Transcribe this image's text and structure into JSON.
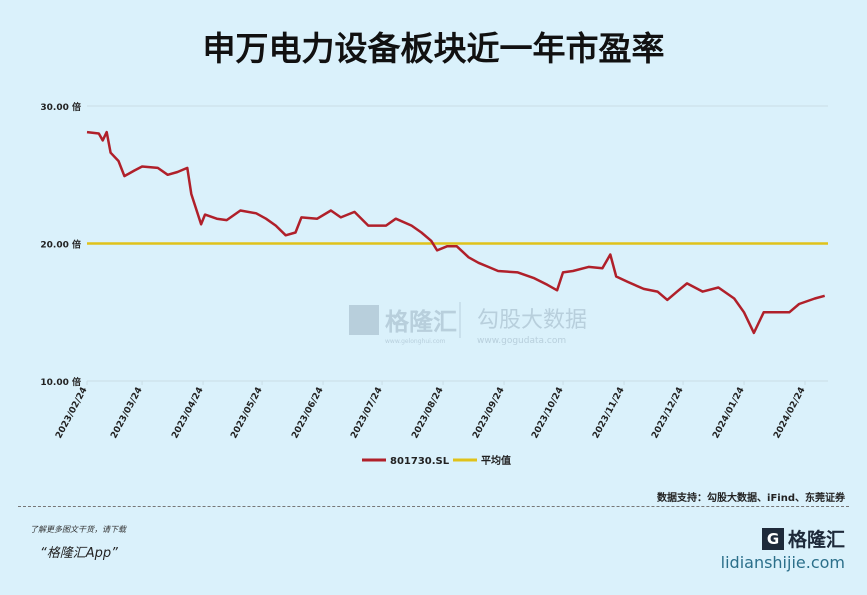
{
  "chart_data": {
    "type": "line",
    "title": "申万电力设备板块近一年市盈率",
    "ylim": [
      10,
      30
    ],
    "yticks": [
      {
        "value": 30,
        "label": "30.00 倍"
      },
      {
        "value": 20,
        "label": "20.00 倍"
      },
      {
        "value": 10,
        "label": "10.00 倍"
      }
    ],
    "xticks": [
      "2023/02/24",
      "2023/03/24",
      "2023/04/24",
      "2023/05/24",
      "2023/06/24",
      "2023/07/24",
      "2023/08/24",
      "2023/09/24",
      "2023/10/24",
      "2023/11/24",
      "2023/12/24",
      "2024/01/24",
      "2024/02/24"
    ],
    "grid": true,
    "legend_position": "bottom",
    "series": [
      {
        "name": "801730.SL",
        "color": "#b0202a",
        "x": [
          "2023-02-24",
          "2023-03-02",
          "2023-03-04",
          "2023-03-06",
          "2023-03-08",
          "2023-03-12",
          "2023-03-15",
          "2023-03-20",
          "2023-03-24",
          "2023-04-01",
          "2023-04-06",
          "2023-04-11",
          "2023-04-16",
          "2023-04-18",
          "2023-04-23",
          "2023-04-25",
          "2023-05-01",
          "2023-05-06",
          "2023-05-13",
          "2023-05-21",
          "2023-05-26",
          "2023-05-31",
          "2023-06-05",
          "2023-06-10",
          "2023-06-13",
          "2023-06-21",
          "2023-06-28",
          "2023-07-03",
          "2023-07-10",
          "2023-07-17",
          "2023-07-26",
          "2023-07-31",
          "2023-08-08",
          "2023-08-13",
          "2023-08-18",
          "2023-08-21",
          "2023-08-26",
          "2023-08-31",
          "2023-09-06",
          "2023-09-11",
          "2023-09-16",
          "2023-09-21",
          "2023-10-01",
          "2023-10-09",
          "2023-10-16",
          "2023-10-21",
          "2023-10-24",
          "2023-10-29",
          "2023-11-06",
          "2023-11-13",
          "2023-11-17",
          "2023-11-20",
          "2023-11-26",
          "2023-12-04",
          "2023-12-11",
          "2023-12-16",
          "2023-12-21",
          "2023-12-26",
          "2024-01-03",
          "2024-01-11",
          "2024-01-19",
          "2024-01-24",
          "2024-01-29",
          "2024-02-03",
          "2024-02-16",
          "2024-02-21",
          "2024-02-29",
          "2024-03-05"
        ],
        "values": [
          28.1,
          28.0,
          27.5,
          28.1,
          26.6,
          26.0,
          24.9,
          25.3,
          25.6,
          25.5,
          25.0,
          25.2,
          25.5,
          23.6,
          21.4,
          22.1,
          21.8,
          21.7,
          22.4,
          22.2,
          21.8,
          21.3,
          20.6,
          20.8,
          21.9,
          21.8,
          22.4,
          21.9,
          22.3,
          21.3,
          21.3,
          21.8,
          21.3,
          20.8,
          20.2,
          19.5,
          19.8,
          19.8,
          19.0,
          18.6,
          18.3,
          18.0,
          17.9,
          17.5,
          17.0,
          16.6,
          17.9,
          18.0,
          18.3,
          18.2,
          19.2,
          17.6,
          17.2,
          16.7,
          16.5,
          15.9,
          16.5,
          17.1,
          16.5,
          16.8,
          16.0,
          15.0,
          13.5,
          15.0,
          15.0,
          15.6,
          16.0,
          16.2
        ]
      },
      {
        "name": "平均值",
        "color": "#e0c21a",
        "value": 20.0
      }
    ]
  },
  "watermark": {
    "brand": "格隆汇",
    "brand_url": "www.gelonghui.com",
    "partner": "勾股大数据",
    "partner_url": "www.gogudata.com"
  },
  "footer": {
    "source": "数据支持：勾股大数据、iFind、东莞证券",
    "promo_line1": "了解更多图文干货，请下载",
    "promo_line2": "“格隆汇App”",
    "logo_text": "格隆汇",
    "site": "lidianshijie.com"
  }
}
